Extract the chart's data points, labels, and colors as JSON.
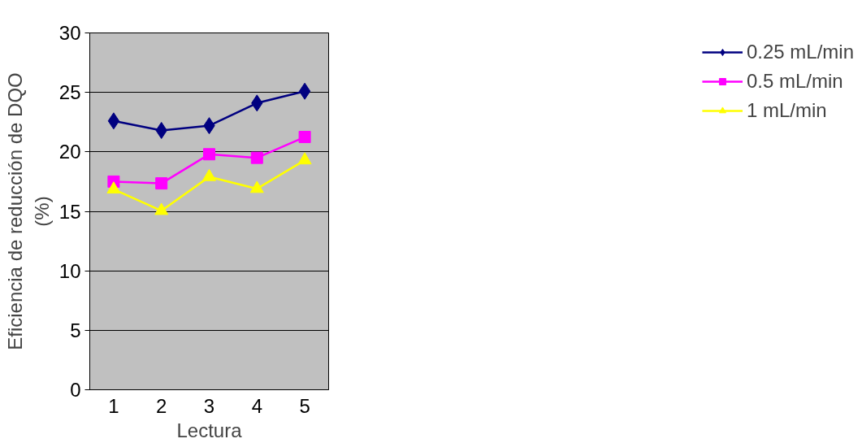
{
  "chart_data": {
    "type": "line",
    "xlabel": "Lectura",
    "ylabel": "Eficiencia de reducción de DQO\n(%)",
    "categories": [
      "1",
      "2",
      "3",
      "4",
      "5"
    ],
    "series": [
      {
        "name": "0.25 mL/min",
        "color": "#000080",
        "marker": "diamond",
        "values": [
          22.6,
          21.8,
          22.2,
          24.1,
          25.1
        ]
      },
      {
        "name": "0.5 mL/min",
        "color": "#ff00ff",
        "marker": "square",
        "values": [
          17.5,
          17.35,
          19.8,
          19.5,
          21.25
        ]
      },
      {
        "name": "1 mL/min",
        "color": "#ffff00",
        "marker": "triangle",
        "values": [
          16.85,
          15.05,
          17.9,
          16.9,
          19.3
        ]
      }
    ],
    "ylim": [
      0,
      30
    ],
    "yticks": [
      0,
      5,
      10,
      15,
      20,
      25,
      30
    ],
    "grid": "y",
    "legend": "right",
    "line_style": "solid"
  }
}
